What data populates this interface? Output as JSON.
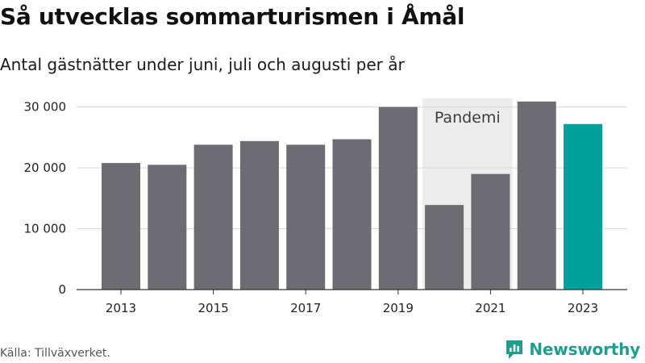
{
  "title": "Så utvecklas sommarturismen i Åmål",
  "subtitle": "Antal gästnätter under juni, juli och augusti per år",
  "source": "Källa: Tillväxverket.",
  "brand": {
    "name": "Newsworthy",
    "color": "#1f9e8f"
  },
  "colors": {
    "bar": "#6d6c72",
    "highlight": "#00a19a",
    "annotation_band": "#ececec"
  },
  "chart_data": {
    "type": "bar",
    "categories": [
      "2013",
      "2014",
      "2015",
      "2016",
      "2017",
      "2018",
      "2019",
      "2020",
      "2021",
      "2022",
      "2023"
    ],
    "values": [
      20800,
      20500,
      23800,
      24400,
      23800,
      24700,
      30000,
      13900,
      19000,
      30900,
      27200
    ],
    "highlight_category": "2023",
    "x_tick_labels": [
      "2013",
      "2015",
      "2017",
      "2019",
      "2021",
      "2023"
    ],
    "y_ticks": [
      0,
      10000,
      20000,
      30000
    ],
    "y_tick_labels": [
      "0",
      "10 000",
      "20 000",
      "30 000"
    ],
    "ylim": [
      0,
      33000
    ],
    "grid": true,
    "annotations": [
      {
        "label": "Pandemi",
        "from": "2020",
        "to": "2021"
      }
    ]
  }
}
